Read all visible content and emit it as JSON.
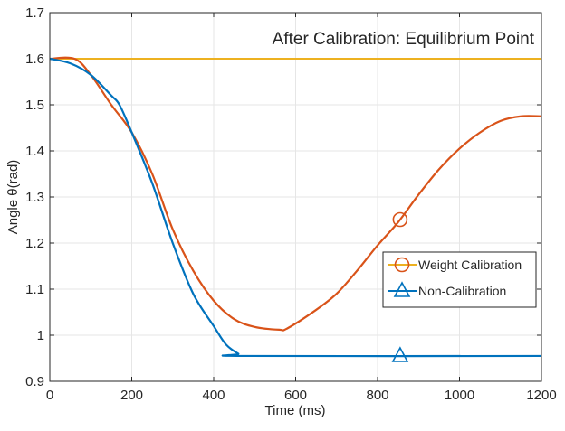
{
  "chart_data": {
    "type": "line",
    "title": "After Calibration: Equilibrium Point",
    "xlabel": "Time (ms)",
    "ylabel": "Angle θ(rad)",
    "xlim": [
      0,
      1200
    ],
    "ylim": [
      0.9,
      1.7
    ],
    "xticks": [
      0,
      200,
      400,
      600,
      800,
      1000,
      1200
    ],
    "yticks": [
      0.9,
      1,
      1.1,
      1.2,
      1.3,
      1.4,
      1.5,
      1.6,
      1.7
    ],
    "xtick_labels": [
      "0",
      "200",
      "400",
      "600",
      "800",
      "1000",
      "1200"
    ],
    "ytick_labels": [
      "0.9",
      "1",
      "1.1",
      "1.2",
      "1.3",
      "1.4",
      "1.5",
      "1.6",
      "1.7"
    ],
    "grid": true,
    "legend_position": "right",
    "reference_line": {
      "y": 1.6,
      "color": "#EDB120"
    },
    "series": [
      {
        "name": "Weight Calibration",
        "color": "#D95319",
        "legend_line_color": "#EDB120",
        "marker": "circle",
        "marker_x": 855,
        "x": [
          0,
          60,
          100,
          150,
          200,
          250,
          300,
          350,
          400,
          450,
          500,
          560,
          580,
          650,
          700,
          750,
          800,
          850,
          900,
          950,
          1000,
          1050,
          1100,
          1150,
          1200
        ],
        "y": [
          1.6,
          1.6,
          1.565,
          1.5,
          1.44,
          1.35,
          1.23,
          1.14,
          1.075,
          1.035,
          1.018,
          1.012,
          1.015,
          1.055,
          1.09,
          1.14,
          1.195,
          1.245,
          1.305,
          1.36,
          1.405,
          1.44,
          1.465,
          1.475,
          1.475
        ]
      },
      {
        "name": "Non-Calibration",
        "color": "#0072BD",
        "legend_line_color": "#0072BD",
        "marker": "triangle",
        "marker_x": 855,
        "x": [
          0,
          50,
          100,
          150,
          170,
          200,
          250,
          300,
          350,
          400,
          430,
          460,
          480,
          1200
        ],
        "y": [
          1.6,
          1.59,
          1.565,
          1.52,
          1.5,
          1.44,
          1.33,
          1.2,
          1.09,
          1.02,
          0.98,
          0.96,
          0.955,
          0.955
        ]
      }
    ]
  }
}
